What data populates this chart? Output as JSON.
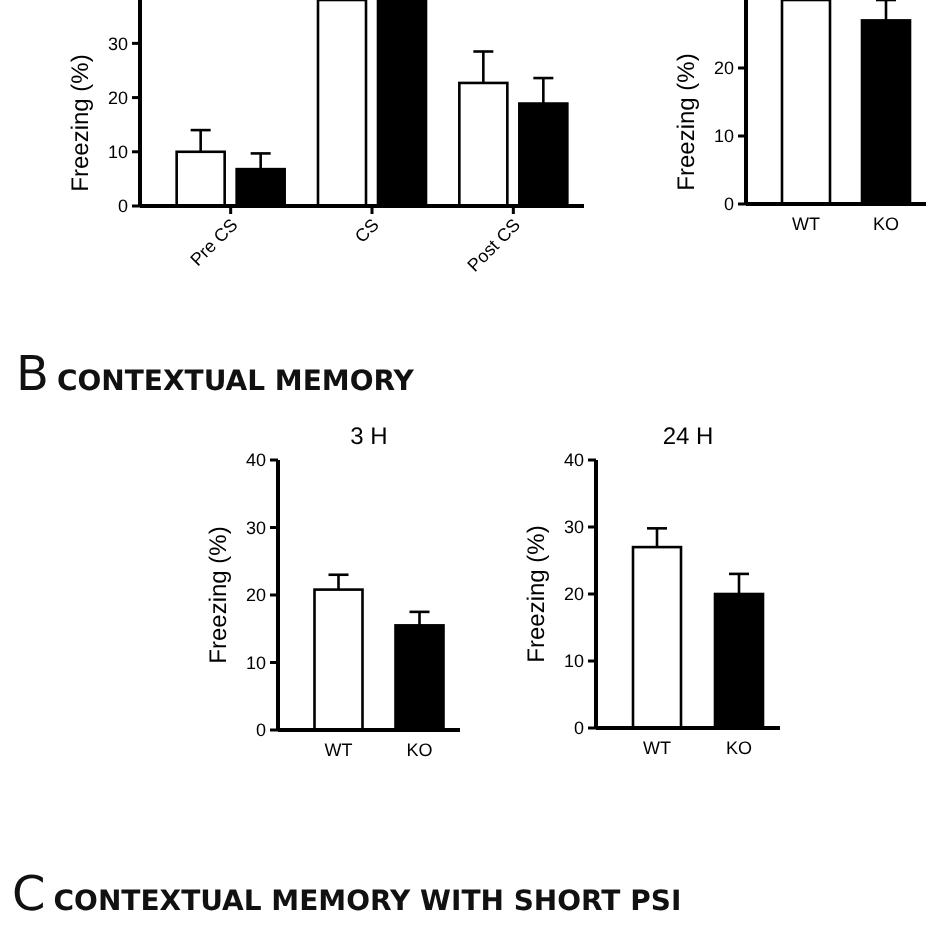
{
  "chart_data": [
    {
      "type": "bar",
      "ylabel": "Freezing (%)",
      "categories": [
        "Pre CS",
        "CS",
        "Post CS"
      ],
      "ylim": [
        0,
        38
      ],
      "yticks": [
        0,
        10,
        20,
        30
      ],
      "series": [
        {
          "color": "#ffffff",
          "values": [
            10,
            38,
            22.7
          ],
          "errors": [
            4,
            null,
            5.8
          ]
        },
        {
          "color": "#000000",
          "values": [
            6.8,
            38,
            18.9
          ],
          "errors": [
            2.9,
            null,
            4.7
          ]
        }
      ]
    },
    {
      "type": "bar",
      "ylabel": "Freezing (%)",
      "categories": [
        "WT",
        "KO"
      ],
      "ylim": [
        0,
        30
      ],
      "yticks": [
        0,
        10,
        20
      ],
      "values": [
        30,
        27
      ],
      "colors": [
        "#ffffff",
        "#000000"
      ],
      "errors": [
        null,
        3
      ]
    },
    {
      "type": "bar",
      "title": "3 H",
      "ylabel": "Freezing (%)",
      "categories": [
        "WT",
        "KO"
      ],
      "ylim": [
        0,
        40
      ],
      "yticks": [
        0,
        10,
        20,
        30,
        40
      ],
      "values": [
        20.8,
        15.5
      ],
      "colors": [
        "#ffffff",
        "#000000"
      ],
      "errors": [
        2.2,
        2
      ],
      "annotations": [
        "B CONTEXTUAL MEMORY"
      ]
    },
    {
      "type": "bar",
      "title": "24 H",
      "ylabel": "Freezing (%)",
      "categories": [
        "WT",
        "KO"
      ],
      "ylim": [
        0,
        40
      ],
      "yticks": [
        0,
        10,
        20,
        30,
        40
      ],
      "values": [
        27,
        20
      ],
      "colors": [
        "#ffffff",
        "#000000"
      ],
      "errors": [
        2.8,
        3
      ],
      "annotations": [
        "C CONTEXTUAL MEMORY WITH SHORT PSI"
      ]
    }
  ]
}
